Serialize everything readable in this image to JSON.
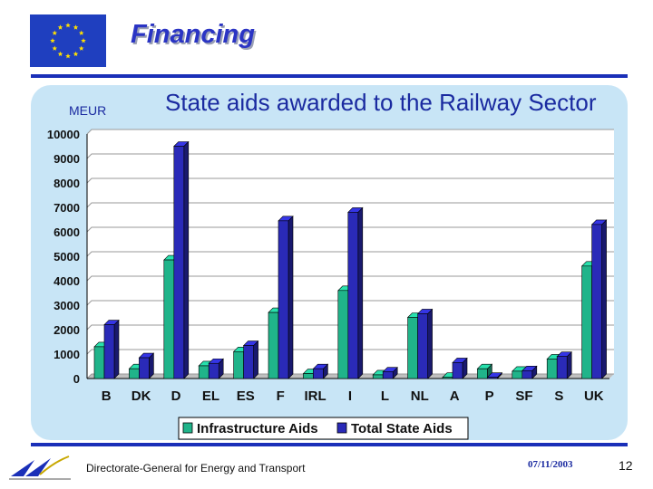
{
  "header": {
    "title": "Financing"
  },
  "footer": {
    "org": "Directorate-General for Energy and Transport",
    "date": "07/11/2003",
    "page": "12"
  },
  "colors": {
    "infra": "#20b48a",
    "total": "#2a2ab8",
    "accent": "#1a2fb8",
    "panel": "#c8e5f6"
  },
  "chart_data": {
    "type": "bar",
    "title": "State aids awarded to the Railway Sector",
    "ylabel": "MEUR",
    "xlabel": "",
    "ylim": [
      0,
      10000
    ],
    "yticks": [
      0,
      1000,
      2000,
      3000,
      4000,
      5000,
      6000,
      7000,
      8000,
      9000,
      10000
    ],
    "categories": [
      "B",
      "DK",
      "D",
      "EL",
      "ES",
      "F",
      "IRL",
      "I",
      "L",
      "NL",
      "A",
      "P",
      "SF",
      "S",
      "UK"
    ],
    "series": [
      {
        "name": "Infrastructure Aids",
        "values": [
          1300,
          400,
          4850,
          520,
          1100,
          2700,
          200,
          3600,
          150,
          2500,
          50,
          400,
          300,
          800,
          4600
        ]
      },
      {
        "name": "Total State Aids",
        "values": [
          2200,
          850,
          9500,
          620,
          1350,
          6450,
          400,
          6800,
          270,
          2650,
          650,
          50,
          320,
          900,
          6300
        ]
      }
    ],
    "legend_position": "bottom",
    "grid": true
  }
}
